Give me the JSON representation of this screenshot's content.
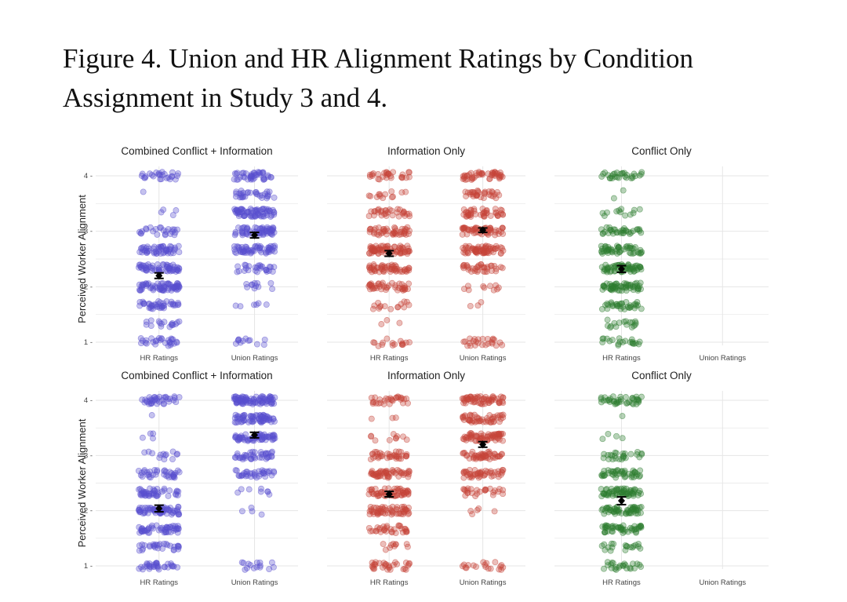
{
  "figure": {
    "title": "Figure 4. Union and HR Alignment Ratings by Condition Assignment in Study 3 and 4."
  },
  "colors": {
    "combined": "#5a4fcf",
    "information": "#c6463a",
    "conflict": "#2f7d32",
    "grid": "#e6e6e6",
    "mean": "#000000"
  },
  "chart_data": [
    {
      "type": "scatter",
      "row": 1,
      "ylabel": "Perceived Worker Alignment",
      "ylim": [
        1,
        4
      ],
      "y_ticks": [
        "1",
        "2",
        "3",
        "4"
      ],
      "categories": [
        "HR Ratings",
        "Union Ratings"
      ],
      "grid": true,
      "panels": [
        {
          "title": "Combined Conflict + Information",
          "color_key": "combined",
          "series": [
            {
              "name": "HR Ratings",
              "mean": 2.2,
              "se": 0.05
            },
            {
              "name": "Union Ratings",
              "mean": 2.93,
              "se": 0.05
            }
          ]
        },
        {
          "title": "Information Only",
          "color_key": "information",
          "series": [
            {
              "name": "HR Ratings",
              "mean": 2.6,
              "se": 0.05
            },
            {
              "name": "Union Ratings",
              "mean": 3.02,
              "se": 0.04
            }
          ]
        },
        {
          "title": "Conflict Only",
          "color_key": "conflict",
          "series": [
            {
              "name": "HR Ratings",
              "mean": 2.32,
              "se": 0.06
            }
          ]
        }
      ]
    },
    {
      "type": "scatter",
      "row": 2,
      "ylabel": "Perceived Worker Alignment",
      "ylim": [
        1,
        4
      ],
      "y_ticks": [
        "1",
        "2",
        "3",
        "4"
      ],
      "categories": [
        "HR Ratings",
        "Union Ratings"
      ],
      "grid": true,
      "panels": [
        {
          "title": "Combined Conflict + Information",
          "color_key": "combined",
          "series": [
            {
              "name": "HR Ratings",
              "mean": 2.04,
              "se": 0.06
            },
            {
              "name": "Union Ratings",
              "mean": 3.37,
              "se": 0.05
            }
          ]
        },
        {
          "title": "Information Only",
          "color_key": "information",
          "series": [
            {
              "name": "HR Ratings",
              "mean": 2.3,
              "se": 0.05
            },
            {
              "name": "Union Ratings",
              "mean": 3.2,
              "se": 0.05
            }
          ]
        },
        {
          "title": "Conflict Only",
          "color_key": "conflict",
          "series": [
            {
              "name": "HR Ratings",
              "mean": 2.18,
              "se": 0.07
            }
          ]
        }
      ]
    }
  ]
}
